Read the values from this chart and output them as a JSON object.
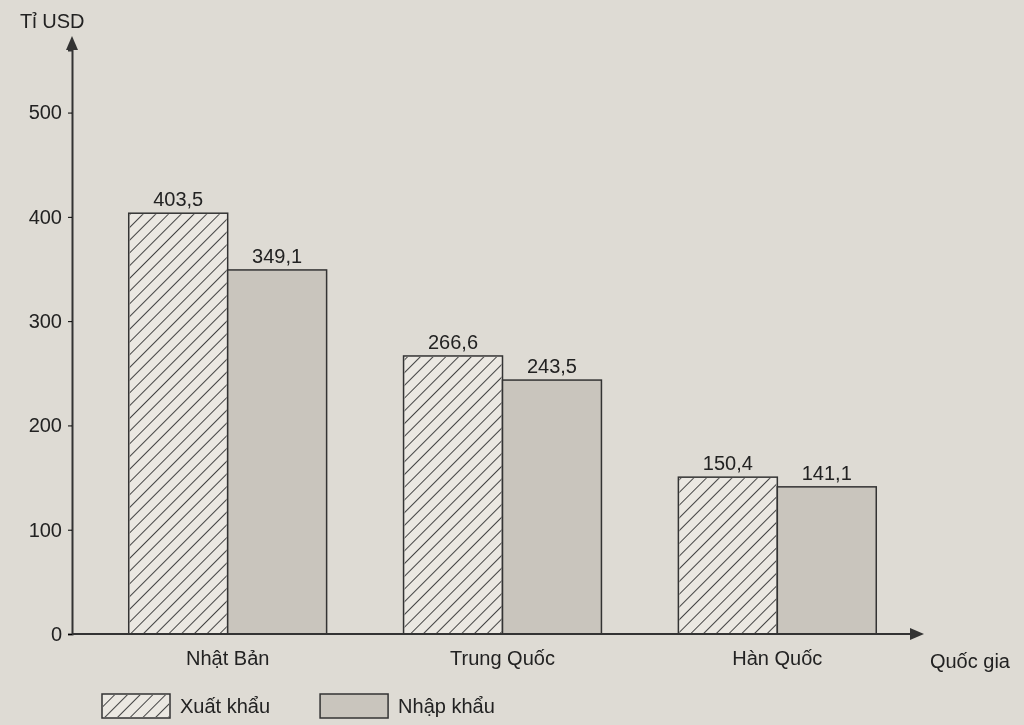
{
  "chart_data": {
    "type": "bar",
    "xlabel": "Quốc gia",
    "ylabel": "Tỉ USD",
    "categories": [
      "Nhật Bản",
      "Trung Quốc",
      "Hàn Quốc"
    ],
    "series": [
      {
        "name": "Xuất khẩu",
        "color": "#ebe8e2",
        "values": [
          403.5,
          266.6,
          150.4
        ],
        "value_labels": [
          "403,5",
          "266,6",
          "150,4"
        ]
      },
      {
        "name": "Nhập khẩu",
        "color": "#c9c5bd",
        "values": [
          349.1,
          243.5,
          141.1
        ],
        "value_labels": [
          "349,1",
          "243,5",
          "141,1"
        ]
      }
    ],
    "ylim": [
      0,
      560
    ],
    "yticks": [
      0,
      100,
      200,
      300,
      400,
      500
    ],
    "legend": "bottom",
    "grid": false
  }
}
